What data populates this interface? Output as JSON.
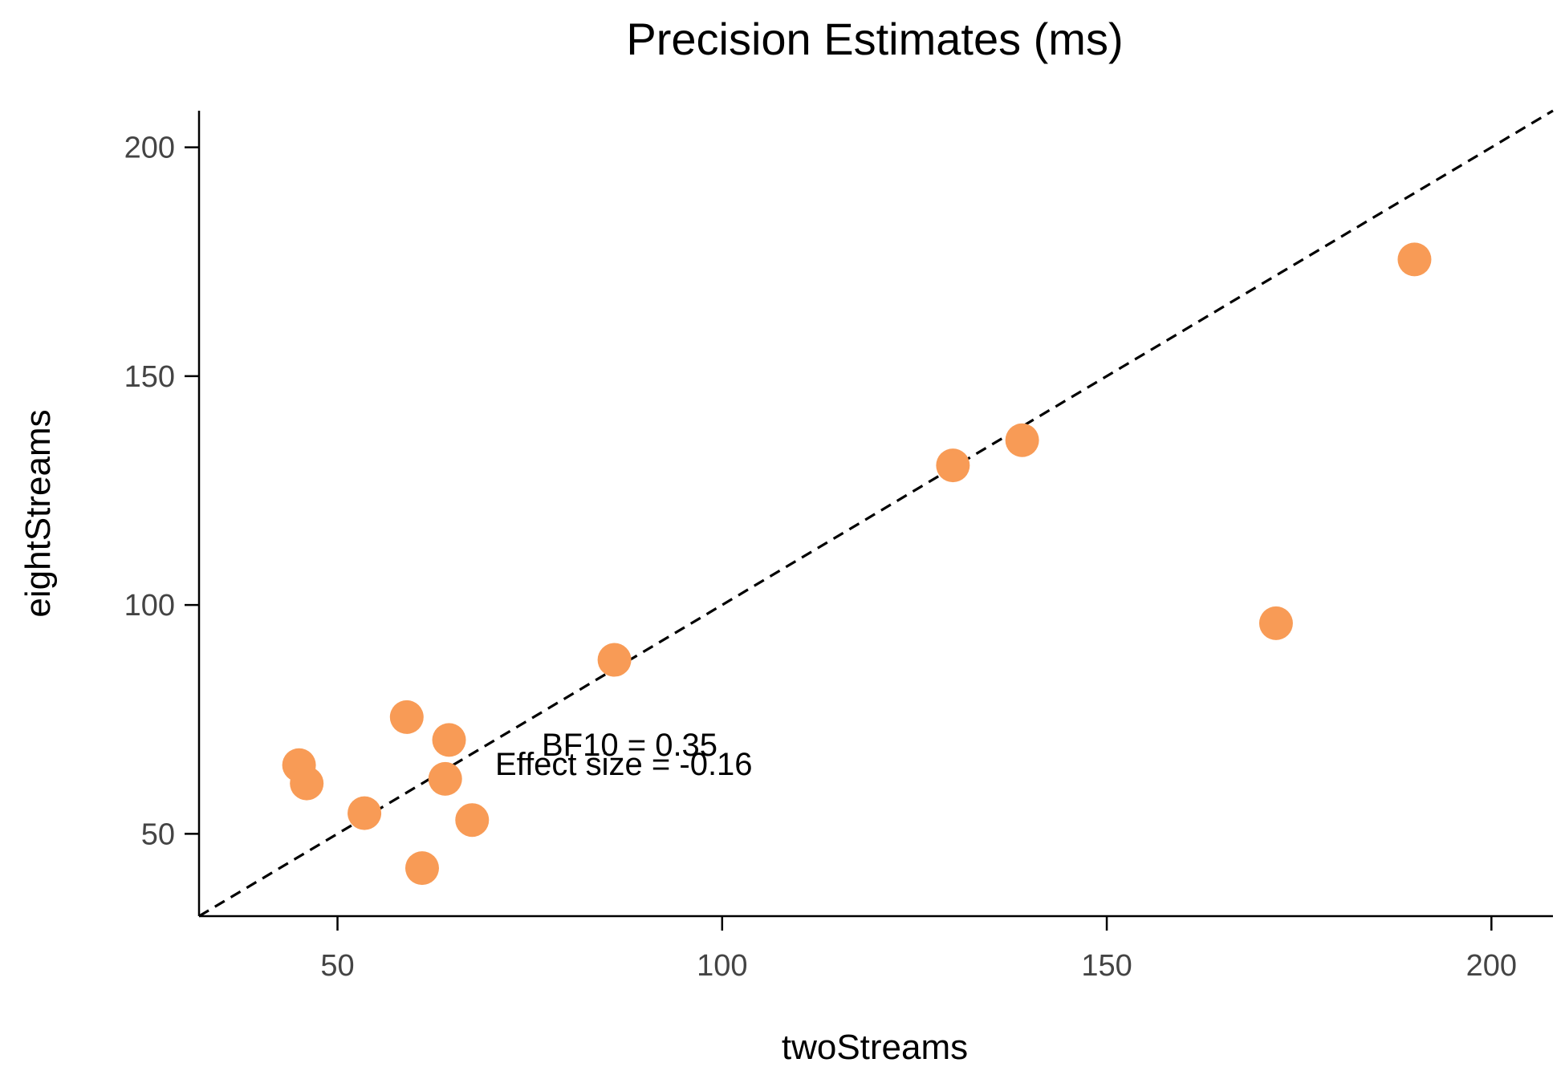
{
  "chart_data": {
    "type": "scatter",
    "title": "Precision Estimates (ms)",
    "xlabel": "twoStreams",
    "ylabel": "eightStreams",
    "xlim": [
      32,
      208
    ],
    "ylim": [
      32,
      208
    ],
    "xticks": [
      50,
      100,
      150,
      200
    ],
    "yticks": [
      50,
      100,
      150,
      200
    ],
    "grid": false,
    "identity_line": true,
    "marker_color": "#F89B56",
    "points": [
      {
        "x": 45,
        "y": 65
      },
      {
        "x": 46,
        "y": 61
      },
      {
        "x": 53.5,
        "y": 54.5
      },
      {
        "x": 59,
        "y": 75.5
      },
      {
        "x": 61,
        "y": 42.5
      },
      {
        "x": 64,
        "y": 62
      },
      {
        "x": 64.5,
        "y": 70.5
      },
      {
        "x": 67.5,
        "y": 53
      },
      {
        "x": 86,
        "y": 88
      },
      {
        "x": 130,
        "y": 130.5
      },
      {
        "x": 139,
        "y": 136
      },
      {
        "x": 172,
        "y": 96
      },
      {
        "x": 190,
        "y": 175.5
      }
    ],
    "annotations": [
      "BF10 = 0.35",
      "Effect size = -0.16"
    ]
  }
}
